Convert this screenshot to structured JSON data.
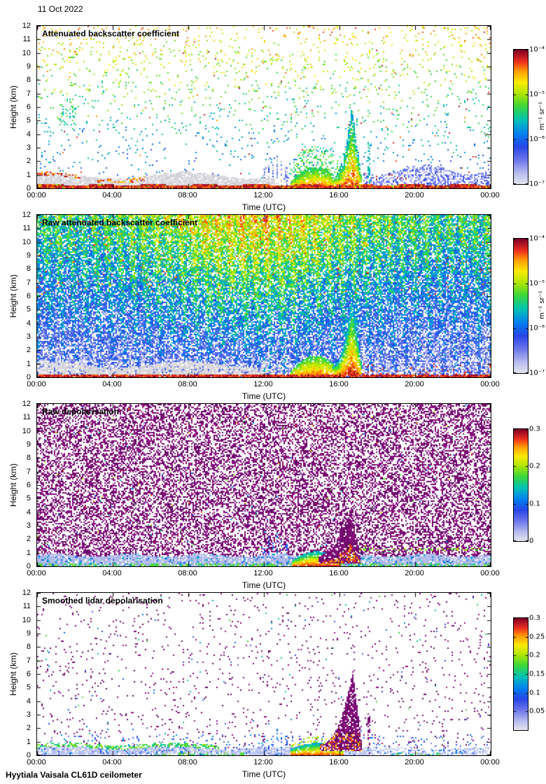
{
  "page": {
    "date_label": "11 Oct 2022",
    "footer": "Hyytiala Vaisala CL61D ceilometer"
  },
  "chart_data": [
    {
      "type": "heatmap",
      "title": "Attenuated backscatter coefficient",
      "xlabel": "Time (UTC)",
      "ylabel": "Height (km)",
      "xlim_hours": [
        0,
        24
      ],
      "ylim_km": [
        0,
        12
      ],
      "x_tick_hours": [
        0,
        4,
        8,
        12,
        16,
        20,
        24
      ],
      "x_tick_labels": [
        "00:00",
        "04:00",
        "08:00",
        "12:00",
        "16:00",
        "20:00",
        "00:00"
      ],
      "y_tick_labels": [
        "0",
        "1",
        "2",
        "3",
        "4",
        "5",
        "6",
        "7",
        "8",
        "9",
        "10",
        "11",
        "12"
      ],
      "colorbar": {
        "scale": "log",
        "range": [
          1e-07,
          0.0001
        ],
        "tick_values": [
          0.0001,
          1e-05,
          1e-06,
          1e-07
        ],
        "tick_labels": [
          "10⁻⁴",
          "10⁻⁵",
          "10⁻⁶",
          "10⁻⁷"
        ],
        "unit": "m⁻¹ sr⁻¹"
      },
      "render_style": "backscatter_clean",
      "features": {
        "surface_layer_top_km": 0.3,
        "residual_layer": {
          "hours": [
            0,
            12.6
          ],
          "top_km": 1.0
        },
        "precip_columns_hours": [
          11.9,
          13.3
        ],
        "low_cloud": {
          "hours": [
            13.4,
            16.1
          ],
          "top_km": 1.6
        },
        "plume": {
          "hours": [
            15.6,
            17.15
          ],
          "peak_hour": 16.65,
          "peak_km": 6.0
        },
        "evening_layer": {
          "hours": [
            17.25,
            24
          ],
          "top_km": 1.4
        }
      }
    },
    {
      "type": "heatmap",
      "title": "Raw attenuated backscatter coefficient",
      "xlabel": "Time (UTC)",
      "ylabel": "Height (km)",
      "xlim_hours": [
        0,
        24
      ],
      "ylim_km": [
        0,
        12
      ],
      "x_tick_hours": [
        0,
        4,
        8,
        12,
        16,
        20,
        24
      ],
      "x_tick_labels": [
        "00:00",
        "04:00",
        "08:00",
        "12:00",
        "16:00",
        "20:00",
        "00:00"
      ],
      "y_tick_labels": [
        "0",
        "1",
        "2",
        "3",
        "4",
        "5",
        "6",
        "7",
        "8",
        "9",
        "10",
        "11",
        "12"
      ],
      "colorbar": {
        "scale": "log",
        "range": [
          1e-07,
          0.0001
        ],
        "tick_values": [
          0.0001,
          1e-05,
          1e-06,
          1e-07
        ],
        "tick_labels": [
          "10⁻⁴",
          "10⁻⁵",
          "10⁻⁶",
          "10⁻⁷"
        ],
        "unit": "m⁻¹ sr⁻¹"
      },
      "render_style": "backscatter_raw",
      "features": {
        "surface_layer_top_km": 0.2,
        "residual_layer": {
          "hours": [
            0,
            12.6
          ],
          "top_km": 1.0
        },
        "precip_columns_hours": [
          11.9,
          13.3
        ],
        "low_cloud": {
          "hours": [
            13.4,
            16.1
          ],
          "top_km": 1.6
        },
        "plume": {
          "hours": [
            15.6,
            17.15
          ],
          "peak_hour": 16.65,
          "peak_km": 6.0
        },
        "evening_layer": {
          "hours": [
            17.2,
            24
          ],
          "top_km": 1.0
        }
      }
    },
    {
      "type": "heatmap",
      "title": "Raw depolarisation",
      "xlabel": "Time (UTC)",
      "ylabel": "Height (km)",
      "xlim_hours": [
        0,
        24
      ],
      "ylim_km": [
        0,
        12
      ],
      "x_tick_hours": [
        0,
        4,
        8,
        12,
        16,
        20,
        24
      ],
      "x_tick_labels": [
        "00:00",
        "04:00",
        "08:00",
        "12:00",
        "16:00",
        "20:00",
        "00:00"
      ],
      "y_tick_labels": [
        "0",
        "1",
        "2",
        "3",
        "4",
        "5",
        "6",
        "7",
        "8",
        "9",
        "10",
        "11",
        "12"
      ],
      "colorbar": {
        "scale": "linear",
        "range": [
          0,
          0.3
        ],
        "tick_values": [
          0.3,
          0.2,
          0.1,
          0
        ],
        "tick_labels": [
          "0.3",
          "0.2",
          "0.1",
          "0"
        ]
      },
      "render_style": "depol_raw",
      "features": {
        "boundary_layer_top_km": 0.8,
        "precip_columns_hours": [
          11.9,
          13.3
        ],
        "low_cloud": {
          "hours": [
            13.5,
            16.05
          ],
          "top_km": 1.1
        },
        "plume": {
          "hours": [
            14.9,
            17.1
          ],
          "peak_hour": 16.6,
          "peak_km": 4.3
        }
      }
    },
    {
      "type": "heatmap",
      "title": "Smoothed lidar depolarisation",
      "xlabel": "Time (UTC)",
      "ylabel": "Height (km)",
      "xlim_hours": [
        0,
        24
      ],
      "ylim_km": [
        0,
        12
      ],
      "x_tick_hours": [
        0,
        4,
        8,
        12,
        16,
        20,
        24
      ],
      "x_tick_labels": [
        "00:00",
        "04:00",
        "08:00",
        "12:00",
        "16:00",
        "20:00",
        "00:00"
      ],
      "y_tick_labels": [
        "0",
        "1",
        "2",
        "3",
        "4",
        "5",
        "6",
        "7",
        "8",
        "9",
        "10",
        "11",
        "12"
      ],
      "colorbar": {
        "scale": "linear",
        "range": [
          0,
          0.3
        ],
        "tick_values": [
          0.3,
          0.25,
          0.2,
          0.15,
          0.1,
          0.05
        ],
        "tick_labels": [
          "0.3",
          "0.25",
          "0.2",
          "0.15",
          "0.1",
          "0.05"
        ]
      },
      "render_style": "depol_smooth",
      "features": {
        "boundary_layer_top_km": 0.6,
        "precip_columns_hours": [
          11.9,
          13.3
        ],
        "low_cloud": {
          "hours": [
            13.4,
            16.25
          ],
          "top_km": 0.9
        },
        "plume": {
          "hours": [
            15.0,
            17.15
          ],
          "peak_hour": 16.7,
          "peak_km": 6.2
        }
      }
    }
  ]
}
